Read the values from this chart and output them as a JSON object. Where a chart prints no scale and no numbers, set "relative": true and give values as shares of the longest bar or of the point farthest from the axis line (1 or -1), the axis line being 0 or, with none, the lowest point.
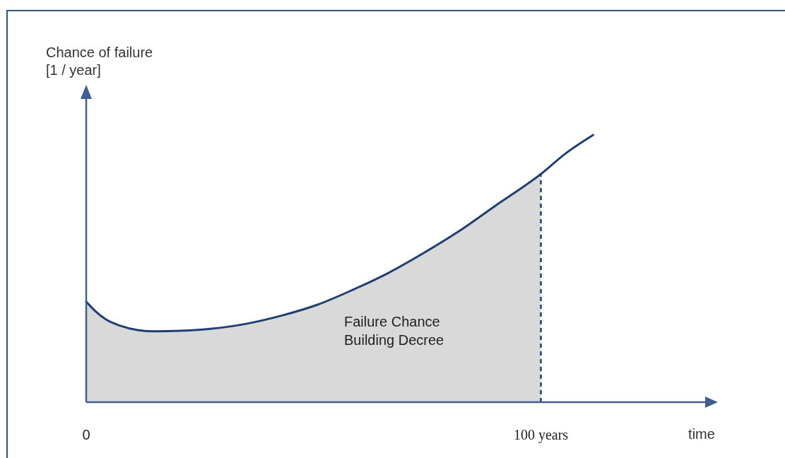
{
  "chart_data": {
    "type": "line",
    "relative": true,
    "xlabel": "time",
    "ylabel": "Chance of failure\n[1 / year]",
    "xlim": [
      0,
      138
    ],
    "xticks": [
      0,
      {
        "value": 100,
        "label": "100 years"
      }
    ],
    "annotations": [
      "Failure Chance\nBuilding Decree"
    ],
    "ref_lines": [
      {
        "axis": "x",
        "value": 100,
        "color": "#1f3f73",
        "line_style": "dashed"
      }
    ],
    "series": [
      {
        "type": "area",
        "color": "#d9d9d9",
        "x": [
          0,
          2,
          4.3,
          7.5,
          11.3,
          15.2,
          20.7,
          27.6,
          35.4,
          43.2,
          50.9,
          58.7,
          66.5,
          74.2,
          82,
          89.8,
          100
        ],
        "values": [
          0.376,
          0.341,
          0.31,
          0.286,
          0.27,
          0.265,
          0.267,
          0.275,
          0.294,
          0.325,
          0.365,
          0.421,
          0.484,
          0.558,
          0.64,
          0.733,
          0.854
        ]
      },
      {
        "color": "#1f3f73",
        "x": [
          0,
          2,
          4.3,
          7.5,
          11.3,
          15.2,
          20.7,
          27.6,
          35.4,
          43.2,
          50.9,
          58.7,
          66.5,
          74.2,
          82,
          89.8,
          100,
          105.3,
          111.5
        ],
        "values": [
          0.376,
          0.341,
          0.31,
          0.286,
          0.27,
          0.265,
          0.267,
          0.275,
          0.294,
          0.325,
          0.365,
          0.421,
          0.484,
          0.558,
          0.64,
          0.733,
          0.854,
          0.929,
          1
        ]
      }
    ]
  }
}
